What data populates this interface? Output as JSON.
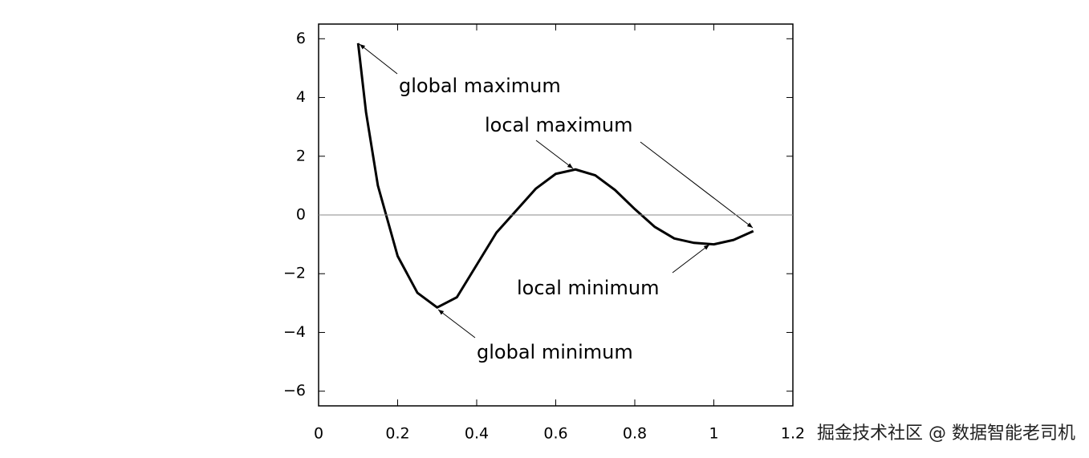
{
  "chart_data": {
    "type": "line",
    "x": [
      0.1,
      0.12,
      0.15,
      0.2,
      0.25,
      0.3,
      0.35,
      0.4,
      0.45,
      0.5,
      0.55,
      0.6,
      0.65,
      0.7,
      0.75,
      0.8,
      0.85,
      0.9,
      0.95,
      1.0,
      1.05,
      1.1
    ],
    "series": [
      {
        "color": "#000000",
        "values": [
          5.85,
          3.5,
          1.0,
          -1.4,
          -2.65,
          -3.15,
          -2.8,
          -1.7,
          -0.6,
          0.15,
          0.9,
          1.4,
          1.55,
          1.35,
          0.85,
          0.2,
          -0.4,
          -0.8,
          -0.95,
          -1.0,
          -0.85,
          -0.55
        ]
      }
    ],
    "xlim": [
      0,
      1.2
    ],
    "ylim": [
      -6.5,
      6.5
    ],
    "xticks": [
      0,
      0.2,
      0.4,
      0.6,
      0.8,
      1,
      1.2
    ],
    "yticks": [
      {
        "value": -6,
        "label": "−6"
      },
      {
        "value": -4,
        "label": "−4"
      },
      {
        "value": -2,
        "label": "−2"
      },
      0,
      2,
      4,
      6
    ],
    "hlines": [
      0
    ],
    "grid": false,
    "annotations": [
      {
        "text": "global maximum",
        "color": "#b5195a"
      },
      {
        "text": "local maximum",
        "color": "#1383c6"
      },
      {
        "text": "local minimum",
        "color": "#1383c6"
      },
      {
        "text": "global minimum",
        "color": "#b5195a"
      }
    ],
    "watermark": "掘金技术社区 @ 数据智能老司机"
  }
}
